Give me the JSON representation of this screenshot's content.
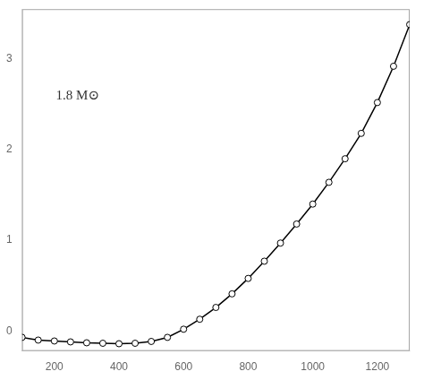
{
  "chart_data": {
    "type": "line",
    "x": [
      100,
      150,
      200,
      250,
      300,
      350,
      400,
      450,
      500,
      550,
      600,
      650,
      700,
      750,
      800,
      850,
      900,
      950,
      1000,
      1050,
      1100,
      1150,
      1200,
      1250,
      1300
    ],
    "values": [
      -0.07,
      -0.1,
      -0.11,
      -0.12,
      -0.13,
      -0.135,
      -0.14,
      -0.135,
      -0.115,
      -0.07,
      0.02,
      0.13,
      0.26,
      0.41,
      0.58,
      0.77,
      0.97,
      1.18,
      1.4,
      1.64,
      1.9,
      2.18,
      2.52,
      2.92,
      3.38
    ],
    "color": "#000000",
    "marker": "circle",
    "line_style": "solid",
    "annotations": [
      {
        "text": "1.8 M⊙",
        "x": 205,
        "y": 2.55
      }
    ],
    "xlim": [
      100,
      1300
    ],
    "ylim": [
      -0.22,
      3.55
    ],
    "xticks": [
      200,
      400,
      600,
      800,
      1000,
      1200
    ],
    "yticks": [
      0,
      1,
      2,
      3
    ],
    "grid": false
  }
}
